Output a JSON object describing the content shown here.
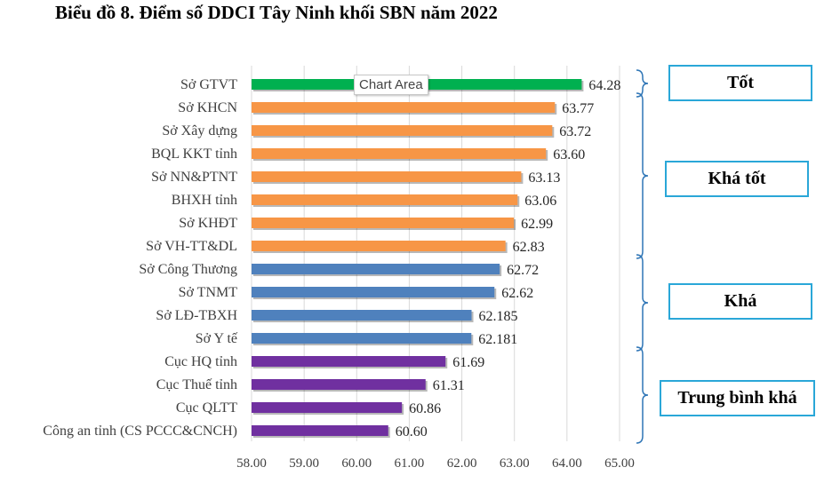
{
  "title": {
    "part1": "Biểu đồ 8. Điểm số DDCI Tây Ninh khối SBN năm 2022"
  },
  "tooltip": "Chart Area",
  "colors": {
    "green": "#00b050",
    "orange": "#f79646",
    "blue": "#4f81bd",
    "purple": "#7030a0",
    "grid": "#d9d9d9",
    "bracket": "#2e75b6"
  },
  "bands": [
    {
      "label": "Tốt"
    },
    {
      "label": "Khá tốt"
    },
    {
      "label": "Khá"
    },
    {
      "label": "Trung bình khá"
    }
  ],
  "chart_data": {
    "type": "bar",
    "orientation": "horizontal",
    "title": "Biểu đồ 8. Điểm số DDCI Tây Ninh khối SBN năm 2022",
    "xlim": [
      58.0,
      65.0
    ],
    "xticks": [
      "58.00",
      "59.00",
      "60.00",
      "61.00",
      "62.00",
      "63.00",
      "64.00",
      "65.00"
    ],
    "grid": true,
    "categories": [
      "Sở GTVT",
      "Sở KHCN",
      "Sở Xây dựng",
      "BQL KKT tỉnh",
      "Sở NN&PTNT",
      "BHXH tỉnh",
      "Sở KHĐT",
      "Sở VH-TT&DL",
      "Sở Công Thương",
      "Sở TNMT",
      "Sở LĐ-TBXH",
      "Sở Y tế",
      "Cục HQ tỉnh",
      "Cục Thuế tỉnh",
      "Cục QLTT",
      "Công an tỉnh (CS PCCC&CNCH)"
    ],
    "values": [
      64.28,
      63.77,
      63.72,
      63.6,
      63.13,
      63.06,
      62.99,
      62.83,
      62.72,
      62.62,
      62.185,
      62.181,
      61.69,
      61.31,
      60.86,
      60.6
    ],
    "value_labels": [
      "64.28",
      "63.77",
      "63.72",
      "63.60",
      "63.13",
      "63.06",
      "62.99",
      "62.83",
      "62.72",
      "62.62",
      "62.185",
      "62.181",
      "61.69",
      "61.31",
      "60.86",
      "60.60"
    ],
    "groups": [
      "green",
      "orange",
      "orange",
      "orange",
      "orange",
      "orange",
      "orange",
      "orange",
      "blue",
      "blue",
      "blue",
      "blue",
      "purple",
      "purple",
      "purple",
      "purple"
    ]
  }
}
